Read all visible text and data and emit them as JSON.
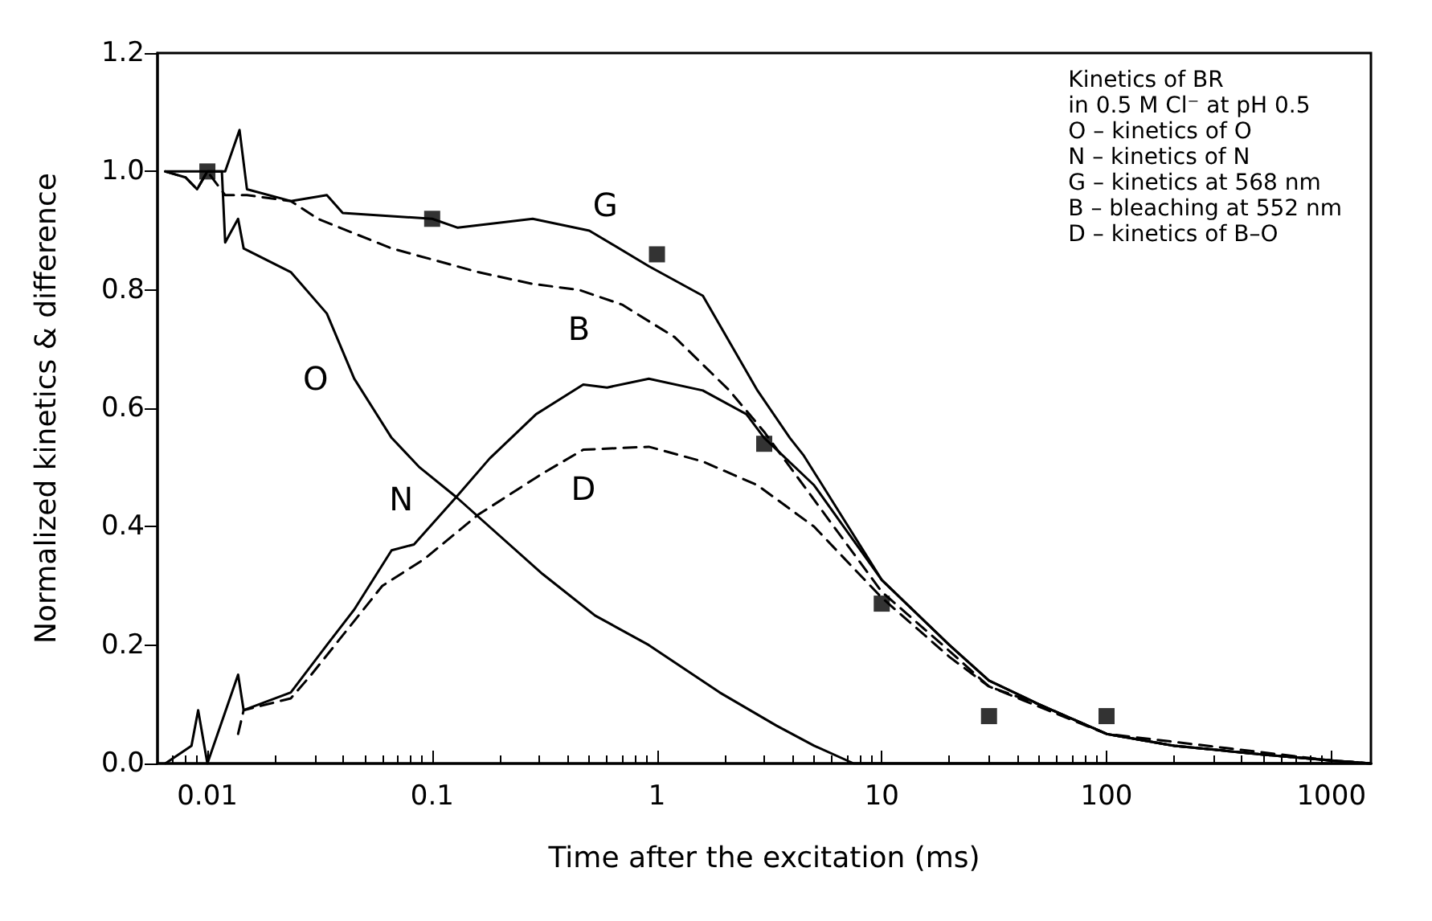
{
  "chart_data": {
    "type": "line",
    "xlabel": "Time after the excitation (ms)",
    "ylabel": "Normalized kinetics & difference",
    "log": "x",
    "grid": false,
    "legend": false,
    "xlim": [
      0.006,
      1500
    ],
    "xticks": [
      0.01,
      0.1,
      1,
      10,
      100,
      1000
    ],
    "ylim": [
      0,
      1.2
    ],
    "yticks": [
      {
        "value": 0,
        "label": "0.0"
      },
      0.2,
      0.4,
      0.6,
      0.8,
      {
        "value": 1,
        "label": "1.0"
      },
      1.2
    ],
    "series": [
      {
        "type": "line",
        "name": "G",
        "color": "#000000",
        "line_style": "solid",
        "marker": "none",
        "x": [
          0.0065,
          0.008,
          0.009,
          0.01,
          0.012,
          0.0139,
          0.015,
          0.0235,
          0.034,
          0.04,
          0.1,
          0.13,
          0.28,
          0.5,
          0.92,
          1.6,
          2.8,
          3.9,
          4.5,
          10,
          20,
          30,
          50,
          100,
          200,
          500,
          1000,
          1500
        ],
        "values": [
          1.0,
          0.99,
          0.97,
          1.0,
          1.0,
          1.07,
          0.97,
          0.95,
          0.96,
          0.93,
          0.92,
          0.905,
          0.92,
          0.9,
          0.84,
          0.79,
          0.63,
          0.55,
          0.52,
          0.31,
          0.2,
          0.14,
          0.1,
          0.05,
          0.03,
          0.015,
          0.005,
          0
        ]
      },
      {
        "type": "line",
        "name": "B",
        "color": "#000000",
        "line_style": "dashed",
        "marker": "none",
        "x": [
          0.0065,
          0.008,
          0.009,
          0.01,
          0.012,
          0.015,
          0.0235,
          0.031,
          0.066,
          0.16,
          0.28,
          0.45,
          0.7,
          1.2,
          2.1,
          3,
          10,
          20,
          30,
          50,
          100,
          200,
          500,
          1000,
          1500
        ],
        "values": [
          1.0,
          0.99,
          0.97,
          1.0,
          0.96,
          0.96,
          0.95,
          0.92,
          0.87,
          0.83,
          0.81,
          0.8,
          0.775,
          0.72,
          0.63,
          0.56,
          0.29,
          0.19,
          0.13,
          0.1,
          0.05,
          0.03,
          0.015,
          0.005,
          0
        ]
      },
      {
        "type": "line",
        "name": "O",
        "color": "#000000",
        "line_style": "solid",
        "marker": "none",
        "x": [
          0.0065,
          0.0116,
          0.012,
          0.0137,
          0.0145,
          0.0235,
          0.034,
          0.045,
          0.066,
          0.088,
          0.128,
          0.31,
          0.53,
          0.92,
          1.9,
          3.4,
          5,
          7.5,
          10,
          100,
          1000,
          1500
        ],
        "values": [
          1.0,
          1.0,
          0.88,
          0.92,
          0.87,
          0.83,
          0.76,
          0.65,
          0.55,
          0.5,
          0.45,
          0.32,
          0.25,
          0.2,
          0.12,
          0.064,
          0.03,
          0,
          0,
          0,
          0,
          0
        ]
      },
      {
        "type": "line",
        "name": "N",
        "color": "#000000",
        "line_style": "solid",
        "marker": "none",
        "x": [
          0.0065,
          0.0085,
          0.0091,
          0.01,
          0.0137,
          0.0145,
          0.0235,
          0.034,
          0.045,
          0.066,
          0.083,
          0.128,
          0.18,
          0.29,
          0.47,
          0.6,
          0.92,
          1.6,
          2.5,
          3,
          5,
          10,
          20,
          30,
          50,
          100,
          200,
          500,
          1000,
          1500
        ],
        "values": [
          0,
          0.03,
          0.09,
          0,
          0.15,
          0.09,
          0.12,
          0.2,
          0.26,
          0.36,
          0.37,
          0.45,
          0.515,
          0.59,
          0.64,
          0.635,
          0.65,
          0.63,
          0.59,
          0.55,
          0.47,
          0.31,
          0.2,
          0.14,
          0.1,
          0.05,
          0.03,
          0.015,
          0.005,
          0
        ]
      },
      {
        "type": "line",
        "name": "D",
        "color": "#000000",
        "line_style": "dashed",
        "marker": "none",
        "x": [
          0.0137,
          0.0145,
          0.0235,
          0.029,
          0.06,
          0.092,
          0.16,
          0.31,
          0.47,
          0.92,
          1.6,
          2.8,
          5,
          10,
          20,
          30,
          100,
          1000,
          1500
        ],
        "values": [
          0.05,
          0.09,
          0.11,
          0.15,
          0.3,
          0.345,
          0.42,
          0.49,
          0.53,
          0.535,
          0.51,
          0.47,
          0.4,
          0.28,
          0.18,
          0.13,
          0.05,
          0.005,
          0
        ]
      },
      {
        "type": "scatter",
        "color": "#000000",
        "marker": "square",
        "x": [
          0.01,
          0.1,
          1,
          3,
          10,
          30,
          100
        ],
        "values": [
          1.0,
          0.92,
          0.86,
          0.54,
          0.27,
          0.08,
          0.08
        ]
      }
    ],
    "annotations": [
      "Kinetics of BR",
      "in 0.5 M Cl⁻ at pH 0.5",
      "O – kinetics of O",
      "N – kinetics of N",
      "G – kinetics at 568 nm",
      "B – bleaching at 552 nm",
      "D – kinetics of B–O"
    ]
  }
}
